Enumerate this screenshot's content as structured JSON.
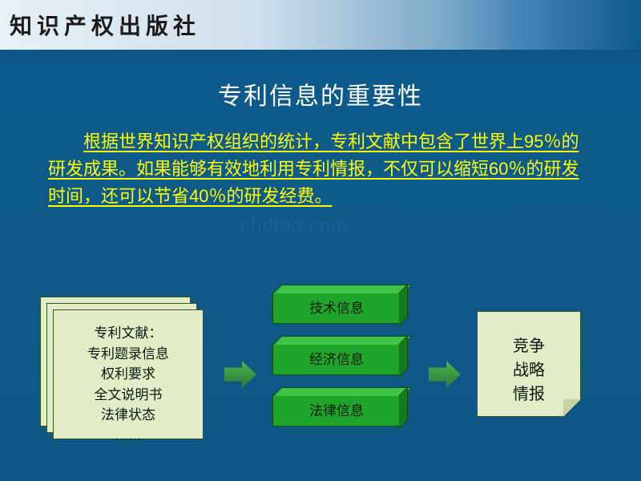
{
  "publisher": "知识产权出版社",
  "title": "专利信息的重要性",
  "body_text": "根据世界知识产权组织的统计，专利文献中包含了世界上95％的研发成果。如果能够有效地利用专利情报，不仅可以缩短60％的研发时间，还可以节省40％的研发经费。",
  "watermark": "chdtod.com",
  "diagram": {
    "type": "flowchart",
    "left_box": {
      "title": "专利文献：",
      "items": [
        "专利题录信息",
        "权利要求",
        "全文说明书",
        "法律状态",
        "……"
      ],
      "bg": "#e3ecc8",
      "border": "#3a5a1a",
      "fontsize": 17
    },
    "middle_boxes": {
      "labels": [
        "技术信息",
        "经济信息",
        "法律信息"
      ],
      "face_color": "#1fa52a",
      "top_color": "#3fc546",
      "side_color": "#147a1c",
      "border": "#0a4a0a",
      "fontsize": 17
    },
    "right_box": {
      "lines": [
        "竞争",
        "战略",
        "情报"
      ],
      "bg": "#e3ecc8",
      "border": "#3a5a1a",
      "fontsize": 20
    },
    "arrow_color": "#2e7d32"
  },
  "colors": {
    "background_top": "#0a4a78",
    "background_bottom": "#0d5585",
    "title_color": "#ffffff",
    "body_color": "#ffff00",
    "header_gradient_start": "#e8f0f5",
    "header_gradient_end": "#0d5a8a"
  },
  "fonts": {
    "title_size": 30,
    "body_size": 22,
    "publisher_size": 28
  }
}
